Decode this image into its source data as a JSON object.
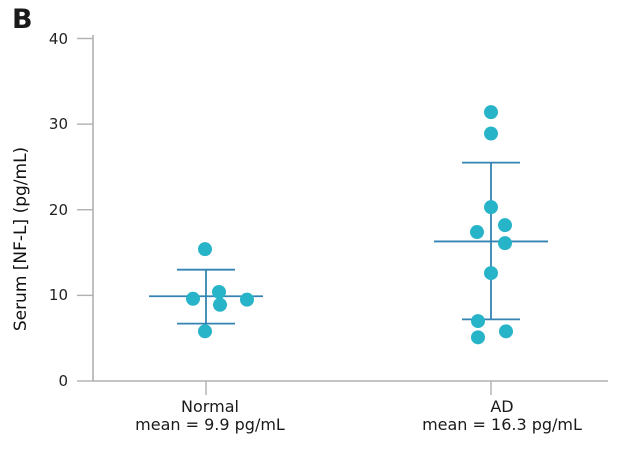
{
  "panel_label": "B",
  "chart_data": {
    "type": "scatter",
    "title": "",
    "ylabel": "Serum [NF-L] (pg/mL)",
    "xlabel": "",
    "ylim": [
      0,
      40
    ],
    "yticks": [
      40,
      30,
      20,
      10,
      0
    ],
    "grid": false,
    "legend": "none",
    "colors": {
      "dot": "#28b4c8",
      "error_bar": "#3383b3",
      "axis": "#b0b0b0",
      "text": "#1a1a1a"
    },
    "groups": [
      {
        "label": "Normal",
        "sublabel": "mean = 9.9 pg/mL",
        "mean": 9.9,
        "error_high": 13.0,
        "error_low": 6.7,
        "points": [
          {
            "value": 15.4,
            "dx": -1
          },
          {
            "value": 10.4,
            "dx": 13
          },
          {
            "value": 9.6,
            "dx": -13
          },
          {
            "value": 9.5,
            "dx": 41
          },
          {
            "value": 8.9,
            "dx": 14
          },
          {
            "value": 5.8,
            "dx": -1
          }
        ]
      },
      {
        "label": "AD",
        "sublabel": "mean = 16.3 pg/mL",
        "mean": 16.3,
        "error_high": 25.5,
        "error_low": 7.2,
        "points": [
          {
            "value": 31.4,
            "dx": 0
          },
          {
            "value": 28.9,
            "dx": 0
          },
          {
            "value": 20.3,
            "dx": 0
          },
          {
            "value": 18.2,
            "dx": 14
          },
          {
            "value": 17.4,
            "dx": -14
          },
          {
            "value": 16.1,
            "dx": 14
          },
          {
            "value": 12.6,
            "dx": 0
          },
          {
            "value": 7.0,
            "dx": -13
          },
          {
            "value": 5.8,
            "dx": 15
          },
          {
            "value": 5.1,
            "dx": -13
          }
        ]
      }
    ]
  }
}
